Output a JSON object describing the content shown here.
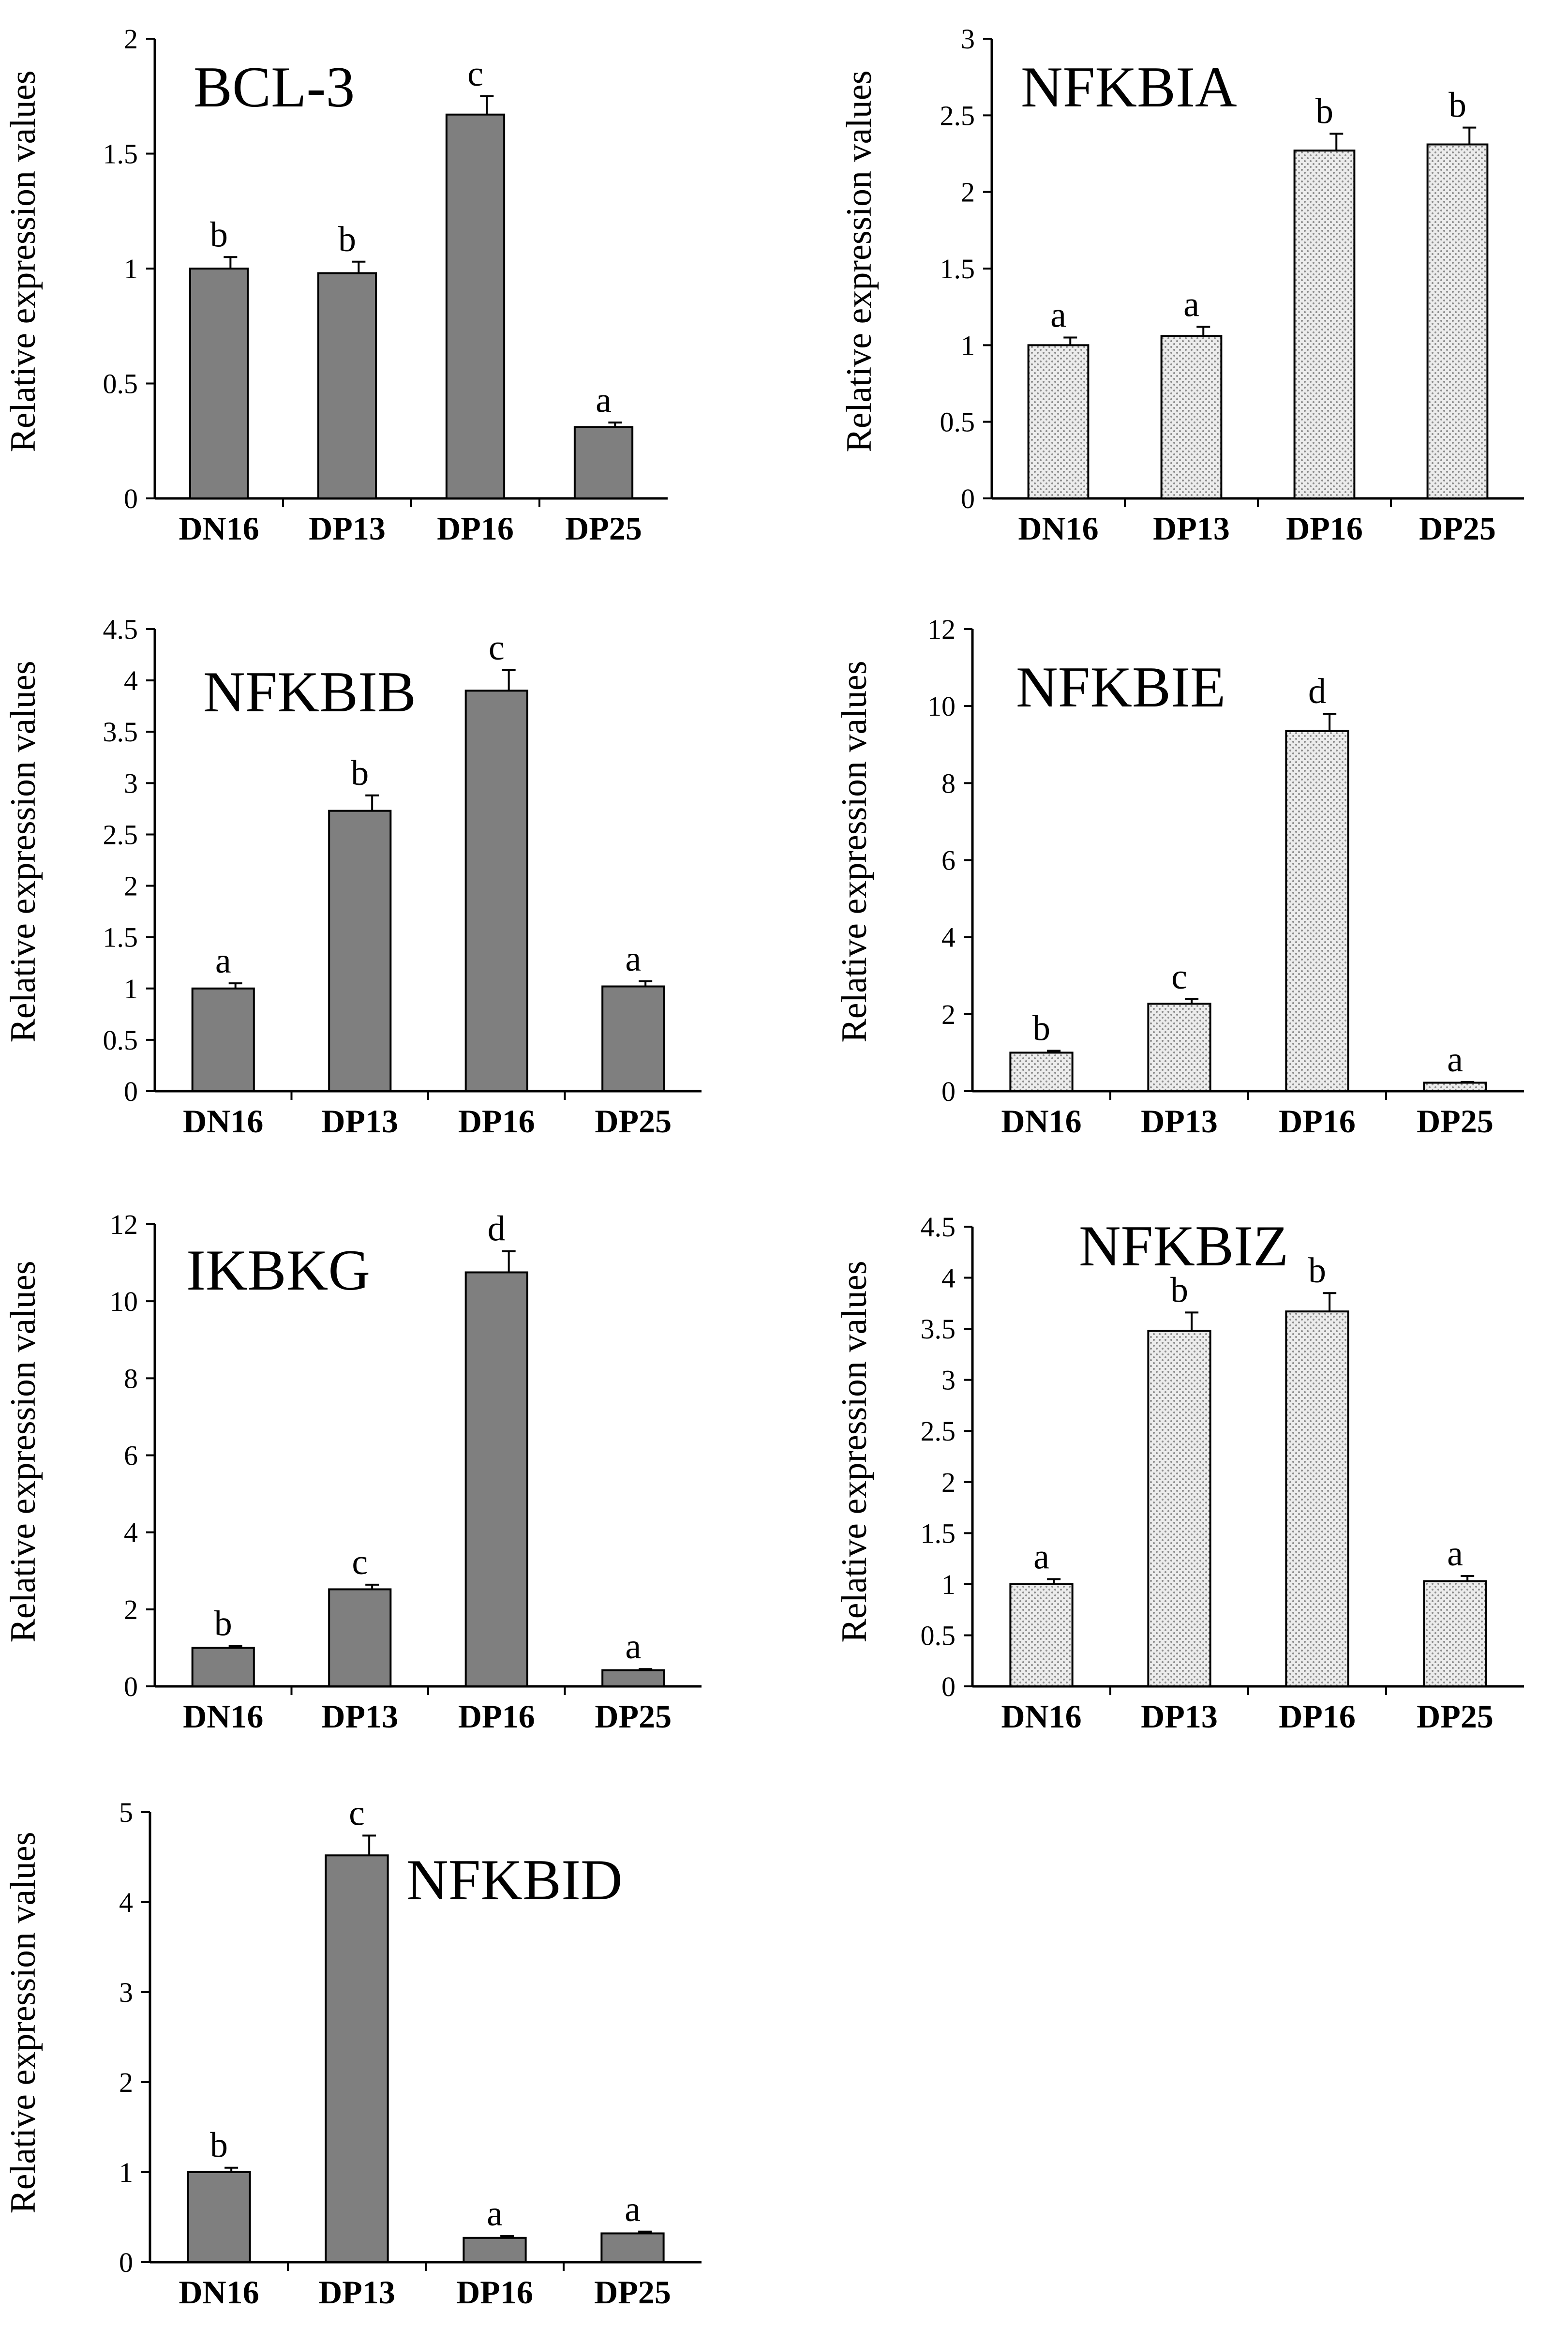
{
  "figure": {
    "ylabel": "Relative expression values",
    "categories": [
      "DN16",
      "DP13",
      "DP16",
      "DP25"
    ],
    "colors": {
      "solid": "#7f7f7f",
      "dotted_bg": "#ececec",
      "dotted_dot": "#8c8c8c",
      "axis": "#000000"
    }
  },
  "chart_data": [
    {
      "type": "bar",
      "title": "BCL-3",
      "style": "solid",
      "categories": [
        "DN16",
        "DP13",
        "DP16",
        "DP25"
      ],
      "values": [
        1.0,
        0.98,
        1.67,
        0.31
      ],
      "errors": [
        0.05,
        0.05,
        0.08,
        0.02
      ],
      "letters": [
        "b",
        "b",
        "c",
        "a"
      ],
      "ylim": [
        0,
        2
      ],
      "ticks": [
        0,
        0.5,
        1,
        1.5,
        2
      ],
      "tick_labels": [
        "0",
        "0.5",
        "1",
        "1.5",
        "2"
      ],
      "xlabel": "",
      "ylabel": "Relative expression values"
    },
    {
      "type": "bar",
      "title": "NFKBIA",
      "style": "dotted",
      "categories": [
        "DN16",
        "DP13",
        "DP16",
        "DP25"
      ],
      "values": [
        1.0,
        1.06,
        2.27,
        2.31
      ],
      "errors": [
        0.05,
        0.06,
        0.11,
        0.11
      ],
      "letters": [
        "a",
        "a",
        "b",
        "b"
      ],
      "ylim": [
        0,
        3
      ],
      "ticks": [
        0,
        0.5,
        1,
        1.5,
        2,
        2.5,
        3
      ],
      "tick_labels": [
        "0",
        "0.5",
        "1",
        "1.5",
        "2",
        "2.5",
        "3"
      ],
      "xlabel": "",
      "ylabel": "Relative expression values"
    },
    {
      "type": "bar",
      "title": "NFKBIB",
      "style": "solid",
      "categories": [
        "DN16",
        "DP13",
        "DP16",
        "DP25"
      ],
      "values": [
        1.0,
        2.73,
        3.9,
        1.02
      ],
      "errors": [
        0.05,
        0.15,
        0.2,
        0.05
      ],
      "letters": [
        "a",
        "b",
        "c",
        "a"
      ],
      "ylim": [
        0,
        4.5
      ],
      "ticks": [
        0,
        0.5,
        1,
        1.5,
        2,
        2.5,
        3,
        3.5,
        4,
        4.5
      ],
      "tick_labels": [
        "0",
        "0.5",
        "1",
        "1.5",
        "2",
        "2.5",
        "3",
        "3.5",
        "4",
        "4.5"
      ],
      "xlabel": "",
      "ylabel": "Relative expression values"
    },
    {
      "type": "bar",
      "title": "NFKBIE",
      "style": "dotted",
      "categories": [
        "DN16",
        "DP13",
        "DP16",
        "DP25"
      ],
      "values": [
        1.0,
        2.27,
        9.35,
        0.22
      ],
      "errors": [
        0.05,
        0.12,
        0.45,
        0.02
      ],
      "letters": [
        "b",
        "c",
        "d",
        "a"
      ],
      "ylim": [
        0,
        12
      ],
      "ticks": [
        0,
        2,
        4,
        6,
        8,
        10,
        12
      ],
      "tick_labels": [
        "0",
        "2",
        "4",
        "6",
        "8",
        "10",
        "12"
      ],
      "xlabel": "",
      "ylabel": "Relative expression values"
    },
    {
      "type": "bar",
      "title": "IKBKG",
      "style": "solid",
      "categories": [
        "DN16",
        "DP13",
        "DP16",
        "DP25"
      ],
      "values": [
        1.0,
        2.52,
        10.75,
        0.42
      ],
      "errors": [
        0.05,
        0.12,
        0.55,
        0.03
      ],
      "letters": [
        "b",
        "c",
        "d",
        "a"
      ],
      "ylim": [
        0,
        12
      ],
      "ticks": [
        0,
        2,
        4,
        6,
        8,
        10,
        12
      ],
      "tick_labels": [
        "0",
        "2",
        "4",
        "6",
        "8",
        "10",
        "12"
      ],
      "xlabel": "",
      "ylabel": "Relative expression values"
    },
    {
      "type": "bar",
      "title": "NFKBIZ",
      "style": "dotted",
      "categories": [
        "DN16",
        "DP13",
        "DP16",
        "DP25"
      ],
      "values": [
        1.0,
        3.48,
        3.67,
        1.03
      ],
      "errors": [
        0.05,
        0.18,
        0.18,
        0.05
      ],
      "letters": [
        "a",
        "b",
        "b",
        "a"
      ],
      "ylim": [
        0,
        4.5
      ],
      "ticks": [
        0,
        0.5,
        1,
        1.5,
        2,
        2.5,
        3,
        3.5,
        4,
        4.5
      ],
      "tick_labels": [
        "0",
        "0.5",
        "1",
        "1.5",
        "2",
        "2.5",
        "3",
        "3.5",
        "4",
        "4.5"
      ],
      "xlabel": "",
      "ylabel": "Relative expression values"
    },
    {
      "type": "bar",
      "title": "NFKBID",
      "style": "solid",
      "categories": [
        "DN16",
        "DP13",
        "DP16",
        "DP25"
      ],
      "values": [
        1.0,
        4.52,
        0.27,
        0.32
      ],
      "errors": [
        0.05,
        0.22,
        0.02,
        0.02
      ],
      "letters": [
        "b",
        "c",
        "a",
        "a"
      ],
      "ylim": [
        0,
        5
      ],
      "ticks": [
        0,
        1,
        2,
        3,
        4,
        5
      ],
      "tick_labels": [
        "0",
        "1",
        "2",
        "3",
        "4",
        "5"
      ],
      "xlabel": "",
      "ylabel": "Relative expression values"
    }
  ]
}
